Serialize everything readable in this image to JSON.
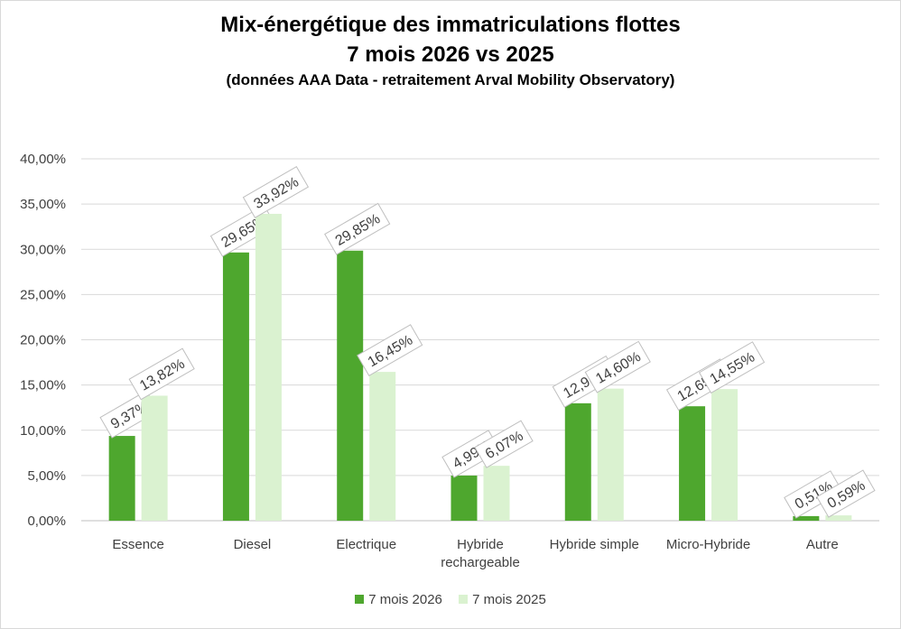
{
  "chart_data": {
    "type": "bar",
    "title": "Mix-énergétique des immatriculations flottes",
    "title_line2": "7 mois 2026 vs 2025",
    "subtitle": "(données AAA Data - retraitement Arval Mobility Observatory)",
    "categories": [
      [
        "Essence"
      ],
      [
        "Diesel"
      ],
      [
        "Electrique"
      ],
      [
        "Hybride",
        "rechargeable"
      ],
      [
        "Hybride simple"
      ],
      [
        "Micro-Hybride"
      ],
      [
        "Autre"
      ]
    ],
    "series": [
      {
        "name": "7 mois 2026",
        "color": "#4ea72e",
        "values": [
          9.37,
          29.65,
          29.85,
          4.99,
          12.98,
          12.65,
          0.51
        ],
        "labels": [
          "9,37%",
          "29,65%",
          "29,85%",
          "4,99%",
          "12,98%",
          "12,65%",
          "0,51%"
        ]
      },
      {
        "name": "7 mois 2025",
        "color": "#daf2d0",
        "values": [
          13.82,
          33.92,
          16.45,
          6.07,
          14.6,
          14.55,
          0.59
        ],
        "labels": [
          "13,82%",
          "33,92%",
          "16,45%",
          "6,07%",
          "14,60%",
          "14,55%",
          "0,59%"
        ]
      }
    ],
    "ylim": [
      0,
      40
    ],
    "yticks": [
      "0,00%",
      "5,00%",
      "10,00%",
      "15,00%",
      "20,00%",
      "25,00%",
      "30,00%",
      "35,00%",
      "40,00%"
    ],
    "grid": true,
    "legend_position": "bottom",
    "xlabel": "",
    "ylabel": ""
  }
}
